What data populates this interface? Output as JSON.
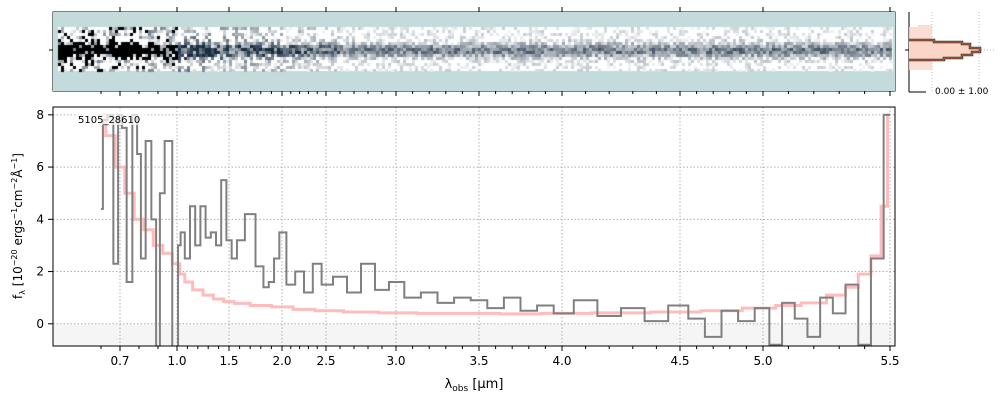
{
  "colors": {
    "data": "#808080",
    "model": "#ffb0b0",
    "panel_bg": "#c3dcdb",
    "neg_band": "#f5f5f5"
  },
  "chart_data": {
    "type": "line",
    "object_label": "5105_28610",
    "xlabel": {
      "main": "λ",
      "sub": "obs",
      "rest": " [μm]"
    },
    "ylabel": {
      "f": "f",
      "sub": "λ",
      "p1": " [10",
      "e1": "−20",
      "p2": " ergs",
      "e2": "−1",
      "p3": "cm",
      "e3": "−2",
      "p4": "Å",
      "e4": "−1",
      "p5": "]"
    },
    "x_ticks": [
      0.7,
      1.0,
      1.5,
      2.0,
      2.5,
      3.0,
      3.5,
      4.0,
      4.5,
      5.0,
      5.5
    ],
    "x_tick_labels": [
      "0.7",
      "1.0",
      "1.5",
      "2.0",
      "2.5",
      "3.0",
      "3.5",
      "4.0",
      "4.5",
      "5.0",
      "5.5"
    ],
    "y_ticks": [
      0,
      2,
      4,
      6,
      8
    ],
    "y_tick_labels": [
      "0",
      "2",
      "4",
      "6",
      "8"
    ],
    "ylim": [
      -0.85,
      8.3
    ],
    "xlim": [
      0.55,
      5.52
    ],
    "grid": true,
    "series": [
      {
        "name": "data",
        "x": [
          0.6,
          0.62,
          0.65,
          0.68,
          0.7,
          0.72,
          0.75,
          0.78,
          0.8,
          0.82,
          0.85,
          0.88,
          0.9,
          0.92,
          0.95,
          1.0,
          1.02,
          1.05,
          1.1,
          1.15,
          1.2,
          1.25,
          1.3,
          1.35,
          1.4,
          1.45,
          1.5,
          1.55,
          1.6,
          1.7,
          1.8,
          1.85,
          1.9,
          1.95,
          2.0,
          2.1,
          2.2,
          2.3,
          2.4,
          2.5,
          2.6,
          2.7,
          2.8,
          2.9,
          3.0,
          3.1,
          3.2,
          3.3,
          3.4,
          3.5,
          3.6,
          3.7,
          3.8,
          3.9,
          4.0,
          4.1,
          4.2,
          4.3,
          4.4,
          4.5,
          4.6,
          4.7,
          4.8,
          4.9,
          5.0,
          5.05,
          5.1,
          5.15,
          5.2,
          5.25,
          5.3,
          5.35,
          5.4,
          5.45,
          5.5
        ],
        "y": [
          4.4,
          7.8,
          8.0,
          2.3,
          8.0,
          7.5,
          1.6,
          8.0,
          6.5,
          2.5,
          7.0,
          4.0,
          -1.0,
          5.0,
          7.0,
          -1.0,
          3.0,
          3.5,
          2.5,
          4.5,
          3.0,
          4.5,
          3.3,
          3.5,
          3.0,
          5.5,
          3.2,
          2.5,
          3.2,
          4.2,
          2.2,
          1.4,
          1.6,
          2.5,
          3.5,
          1.5,
          2.0,
          1.2,
          2.3,
          1.5,
          1.8,
          1.2,
          2.3,
          1.3,
          1.6,
          1.0,
          1.2,
          0.8,
          1.0,
          0.9,
          0.6,
          1.0,
          0.5,
          0.7,
          0.4,
          0.9,
          0.3,
          0.6,
          0.1,
          0.7,
          0.2,
          -0.5,
          0.5,
          0.1,
          0.6,
          -0.8,
          0.8,
          0.2,
          -0.5,
          1.0,
          0.4,
          1.5,
          -0.8,
          2.5,
          8.0
        ]
      },
      {
        "name": "model",
        "x": [
          0.6,
          0.65,
          0.7,
          0.75,
          0.8,
          0.85,
          0.9,
          0.95,
          1.0,
          1.05,
          1.1,
          1.2,
          1.3,
          1.4,
          1.5,
          1.6,
          1.8,
          2.0,
          2.25,
          2.5,
          2.75,
          3.0,
          3.25,
          3.5,
          3.75,
          4.0,
          4.25,
          4.5,
          4.75,
          5.0,
          5.1,
          5.2,
          5.3,
          5.35,
          5.4,
          5.45,
          5.48,
          5.5
        ],
        "y": [
          8.0,
          7.2,
          6.0,
          5.0,
          4.0,
          3.6,
          3.0,
          2.7,
          2.3,
          1.9,
          1.6,
          1.3,
          1.1,
          0.95,
          0.85,
          0.78,
          0.7,
          0.65,
          0.55,
          0.5,
          0.45,
          0.42,
          0.4,
          0.4,
          0.38,
          0.4,
          0.42,
          0.45,
          0.5,
          0.6,
          0.7,
          0.8,
          1.1,
          1.4,
          1.9,
          2.6,
          4.5,
          8.0
        ]
      }
    ]
  },
  "inset": {
    "label": "0.00 ± 1.00"
  }
}
